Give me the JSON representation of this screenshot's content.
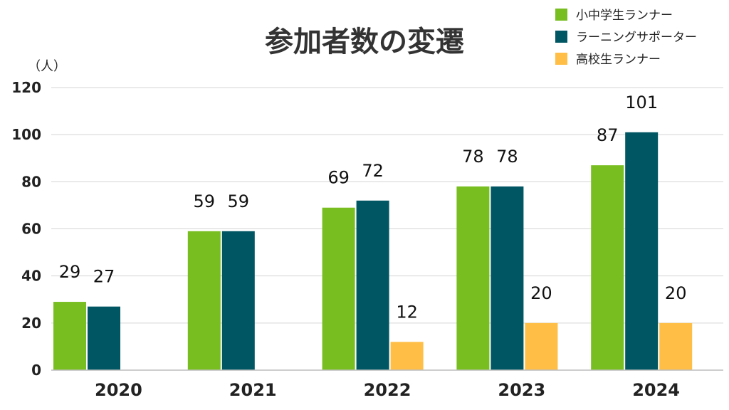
{
  "chart_data": {
    "type": "bar",
    "title": "参加者数の変遷",
    "ylabel": "（人）",
    "xlabel": "",
    "categories": [
      "2020",
      "2021",
      "2022",
      "2023",
      "2024"
    ],
    "series": [
      {
        "name": "小中学生ランナー",
        "color": "#78be21",
        "values": [
          29,
          59,
          69,
          78,
          87
        ]
      },
      {
        "name": "ラーニングサポーター",
        "color": "#005663",
        "values": [
          27,
          59,
          72,
          78,
          101
        ]
      },
      {
        "name": "高校生ランナー",
        "color": "#ffbf47",
        "values": [
          null,
          null,
          12,
          20,
          20
        ]
      }
    ],
    "ylim": [
      0,
      120
    ],
    "yticks": [
      0,
      20,
      40,
      60,
      80,
      100,
      120
    ],
    "grid": true,
    "legend_position": "top-right",
    "data_labels": true
  }
}
